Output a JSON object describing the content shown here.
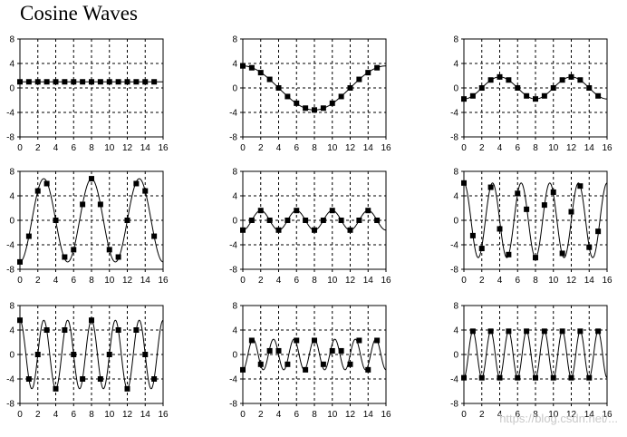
{
  "title": "Cosine Waves",
  "watermark": "https://blog.csdn.net/...",
  "chart_data": [
    {
      "type": "line",
      "xlim": [
        0,
        16
      ],
      "ylim": [
        -8,
        8
      ],
      "x_ticks": [
        0,
        2,
        4,
        6,
        8,
        10,
        12,
        14,
        16
      ],
      "y_ticks": [
        8,
        4,
        0,
        -4,
        -8
      ],
      "grid": true,
      "curve": {
        "amplitude": 1,
        "period": null,
        "phase": 0
      },
      "series": [
        {
          "x": [
            0,
            1,
            2,
            3,
            4,
            5,
            6,
            7,
            8,
            9,
            10,
            11,
            12,
            13,
            14,
            15
          ],
          "y": [
            1,
            1,
            1,
            1,
            1,
            1,
            1,
            1,
            1,
            1,
            1,
            1,
            1,
            1,
            1,
            1
          ]
        }
      ]
    },
    {
      "type": "line",
      "xlim": [
        0,
        16
      ],
      "ylim": [
        -8,
        8
      ],
      "x_ticks": [
        0,
        2,
        4,
        6,
        8,
        10,
        12,
        14,
        16
      ],
      "y_ticks": [
        8,
        4,
        0,
        -4,
        -8
      ],
      "grid": true,
      "curve": {
        "amplitude": 3.6,
        "period": 16,
        "phase": 0
      },
      "series": [
        {
          "x": [
            0,
            1,
            2,
            3,
            4,
            5,
            6,
            7,
            8,
            9,
            10,
            11,
            12,
            13,
            14,
            15
          ],
          "y": [
            3.6,
            3.3,
            2.5,
            1.4,
            0,
            -1.4,
            -2.5,
            -3.3,
            -3.6,
            -3.3,
            -2.5,
            -1.4,
            0,
            1.4,
            2.5,
            3.3
          ]
        }
      ]
    },
    {
      "type": "line",
      "xlim": [
        0,
        16
      ],
      "ylim": [
        -8,
        8
      ],
      "x_ticks": [
        0,
        2,
        4,
        6,
        8,
        10,
        12,
        14,
        16
      ],
      "y_ticks": [
        8,
        4,
        0,
        -4,
        -8
      ],
      "grid": true,
      "curve": {
        "amplitude": 1.8,
        "period": 8,
        "phase": 3.1416
      },
      "series": [
        {
          "x": [
            0,
            1,
            2,
            3,
            4,
            5,
            6,
            7,
            8,
            9,
            10,
            11,
            12,
            13,
            14,
            15
          ],
          "y": [
            -1.8,
            -1.3,
            0,
            1.3,
            1.8,
            1.3,
            0,
            -1.3,
            -1.8,
            -1.3,
            0,
            1.3,
            1.8,
            1.3,
            0,
            -1.3
          ]
        }
      ]
    },
    {
      "type": "line",
      "xlim": [
        0,
        16
      ],
      "ylim": [
        -8,
        8
      ],
      "x_ticks": [
        0,
        2,
        4,
        6,
        8,
        10,
        12,
        14,
        16
      ],
      "y_ticks": [
        8,
        4,
        0,
        -4,
        -8
      ],
      "grid": true,
      "curve": {
        "amplitude": 6.8,
        "period": 5.333,
        "phase": 3.1416
      },
      "series": [
        {
          "x": [
            0,
            1,
            2,
            3,
            4,
            5,
            6,
            7,
            8,
            9,
            10,
            11,
            12,
            13,
            14,
            15
          ],
          "y": [
            -6.8,
            -2.6,
            4.8,
            6.0,
            0,
            -6.0,
            -4.8,
            2.6,
            6.8,
            2.6,
            -4.8,
            -6.0,
            0,
            6.0,
            4.8,
            -2.6
          ]
        }
      ]
    },
    {
      "type": "line",
      "xlim": [
        0,
        16
      ],
      "ylim": [
        -8,
        8
      ],
      "x_ticks": [
        0,
        2,
        4,
        6,
        8,
        10,
        12,
        14,
        16
      ],
      "y_ticks": [
        8,
        4,
        0,
        -4,
        -8
      ],
      "grid": true,
      "curve": {
        "amplitude": 1.6,
        "period": 4,
        "phase": 3.1416
      },
      "series": [
        {
          "x": [
            0,
            1,
            2,
            3,
            4,
            5,
            6,
            7,
            8,
            9,
            10,
            11,
            12,
            13,
            14,
            15
          ],
          "y": [
            -1.6,
            0,
            1.6,
            0,
            -1.6,
            0,
            1.6,
            0,
            -1.6,
            0,
            1.6,
            0,
            -1.6,
            0,
            1.6,
            0
          ]
        }
      ]
    },
    {
      "type": "line",
      "xlim": [
        0,
        16
      ],
      "ylim": [
        -8,
        8
      ],
      "x_ticks": [
        0,
        2,
        4,
        6,
        8,
        10,
        12,
        14,
        16
      ],
      "y_ticks": [
        8,
        4,
        0,
        -4,
        -8
      ],
      "grid": true,
      "curve": {
        "amplitude": 6.1,
        "period": 3.2,
        "phase": 0
      },
      "series": [
        {
          "x": [
            0,
            1,
            2,
            3,
            4,
            5,
            6,
            7,
            8,
            9,
            10,
            11,
            12,
            13,
            14,
            15
          ],
          "y": [
            6.1,
            -2.5,
            -4.6,
            5.4,
            -1.4,
            -5.6,
            4.4,
            1.8,
            -6.1,
            2.5,
            4.6,
            -5.4,
            1.4,
            5.6,
            -4.4,
            -1.8
          ]
        }
      ]
    },
    {
      "type": "line",
      "xlim": [
        0,
        16
      ],
      "ylim": [
        -8,
        8
      ],
      "x_ticks": [
        0,
        2,
        4,
        6,
        8,
        10,
        12,
        14,
        16
      ],
      "y_ticks": [
        8,
        4,
        0,
        -4,
        -8
      ],
      "grid": true,
      "curve": {
        "amplitude": 5.6,
        "period": 2.667,
        "phase": 0
      },
      "series": [
        {
          "x": [
            0,
            1,
            2,
            3,
            4,
            5,
            6,
            7,
            8,
            9,
            10,
            11,
            12,
            13,
            14,
            15
          ],
          "y": [
            5.6,
            -4.0,
            0,
            4.0,
            -5.6,
            4.0,
            0,
            -4.0,
            5.6,
            -4.0,
            0,
            4.0,
            -5.6,
            4.0,
            0,
            -4.0
          ]
        }
      ]
    },
    {
      "type": "line",
      "xlim": [
        0,
        16
      ],
      "ylim": [
        -8,
        8
      ],
      "x_ticks": [
        0,
        2,
        4,
        6,
        8,
        10,
        12,
        14,
        16
      ],
      "y_ticks": [
        8,
        4,
        0,
        -4,
        -8
      ],
      "grid": true,
      "curve": {
        "amplitude": 2.5,
        "period": 2.286,
        "phase": 3.1416
      },
      "series": [
        {
          "x": [
            0,
            1,
            2,
            3,
            4,
            5,
            6,
            7,
            8,
            9,
            10,
            11,
            12,
            13,
            14,
            15
          ],
          "y": [
            -2.5,
            2.3,
            -1.6,
            0.6,
            0.6,
            -1.6,
            2.3,
            -2.5,
            2.3,
            -1.6,
            0.6,
            0.6,
            -1.6,
            2.3,
            -2.5,
            2.3
          ]
        }
      ]
    },
    {
      "type": "line",
      "xlim": [
        0,
        16
      ],
      "ylim": [
        -8,
        8
      ],
      "x_ticks": [
        0,
        2,
        4,
        6,
        8,
        10,
        12,
        14,
        16
      ],
      "y_ticks": [
        8,
        4,
        0,
        -4,
        -8
      ],
      "grid": true,
      "curve": {
        "amplitude": 3.8,
        "period": 2,
        "phase": 3.1416
      },
      "series": [
        {
          "x": [
            0,
            1,
            2,
            3,
            4,
            5,
            6,
            7,
            8,
            9,
            10,
            11,
            12,
            13,
            14,
            15
          ],
          "y": [
            -3.8,
            3.8,
            -3.8,
            3.8,
            -3.8,
            3.8,
            -3.8,
            3.8,
            -3.8,
            3.8,
            -3.8,
            3.8,
            -3.8,
            3.8,
            -3.8,
            3.8
          ]
        }
      ]
    }
  ]
}
